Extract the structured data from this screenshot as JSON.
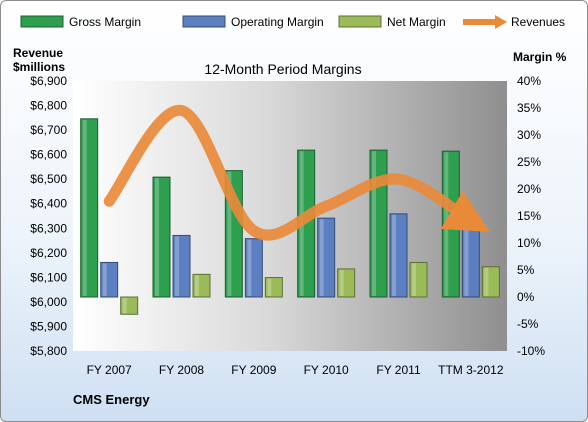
{
  "chart_data": {
    "type": "bar",
    "title": "12-Month Period Margins",
    "company": "CMS Energy",
    "categories": [
      "FY 2007",
      "FY 2008",
      "FY 2009",
      "FY 2010",
      "FY 2011",
      "TTM 3-2012"
    ],
    "y_left": {
      "label_line1": "Revenue",
      "label_line2": "$millions",
      "min": 5800,
      "max": 6900,
      "step": 100,
      "ticks": [
        "$5,800",
        "$5,900",
        "$6,000",
        "$6,100",
        "$6,200",
        "$6,300",
        "$6,400",
        "$6,500",
        "$6,600",
        "$6,700",
        "$6,800",
        "$6,900"
      ]
    },
    "y_right": {
      "label": "Margin %",
      "min": -10,
      "max": 40,
      "step": 5,
      "ticks": [
        "-10%",
        "-5%",
        "0%",
        "5%",
        "10%",
        "15%",
        "20%",
        "25%",
        "30%",
        "35%",
        "40%"
      ]
    },
    "series": [
      {
        "name": "Gross Margin",
        "kind": "bar",
        "axis": "right",
        "color": "#2e9e4f",
        "values": [
          33,
          22.2,
          23.4,
          27.2,
          27.2,
          27
        ]
      },
      {
        "name": "Operating Margin",
        "kind": "bar",
        "axis": "right",
        "color": "#5b7fc0",
        "values": [
          6.4,
          11.4,
          10.8,
          14.6,
          15.4,
          14.2
        ]
      },
      {
        "name": "Net Margin",
        "kind": "bar",
        "axis": "right",
        "color": "#9bbb59",
        "values": [
          -3.2,
          4.2,
          3.6,
          5.2,
          6.4,
          5.6
        ]
      },
      {
        "name": "Revenues",
        "kind": "line",
        "axis": "left",
        "color": "#e98a38",
        "values": [
          6410,
          6780,
          6290,
          6390,
          6500,
          6330
        ]
      }
    ],
    "legend_position": "top",
    "grid": false
  }
}
